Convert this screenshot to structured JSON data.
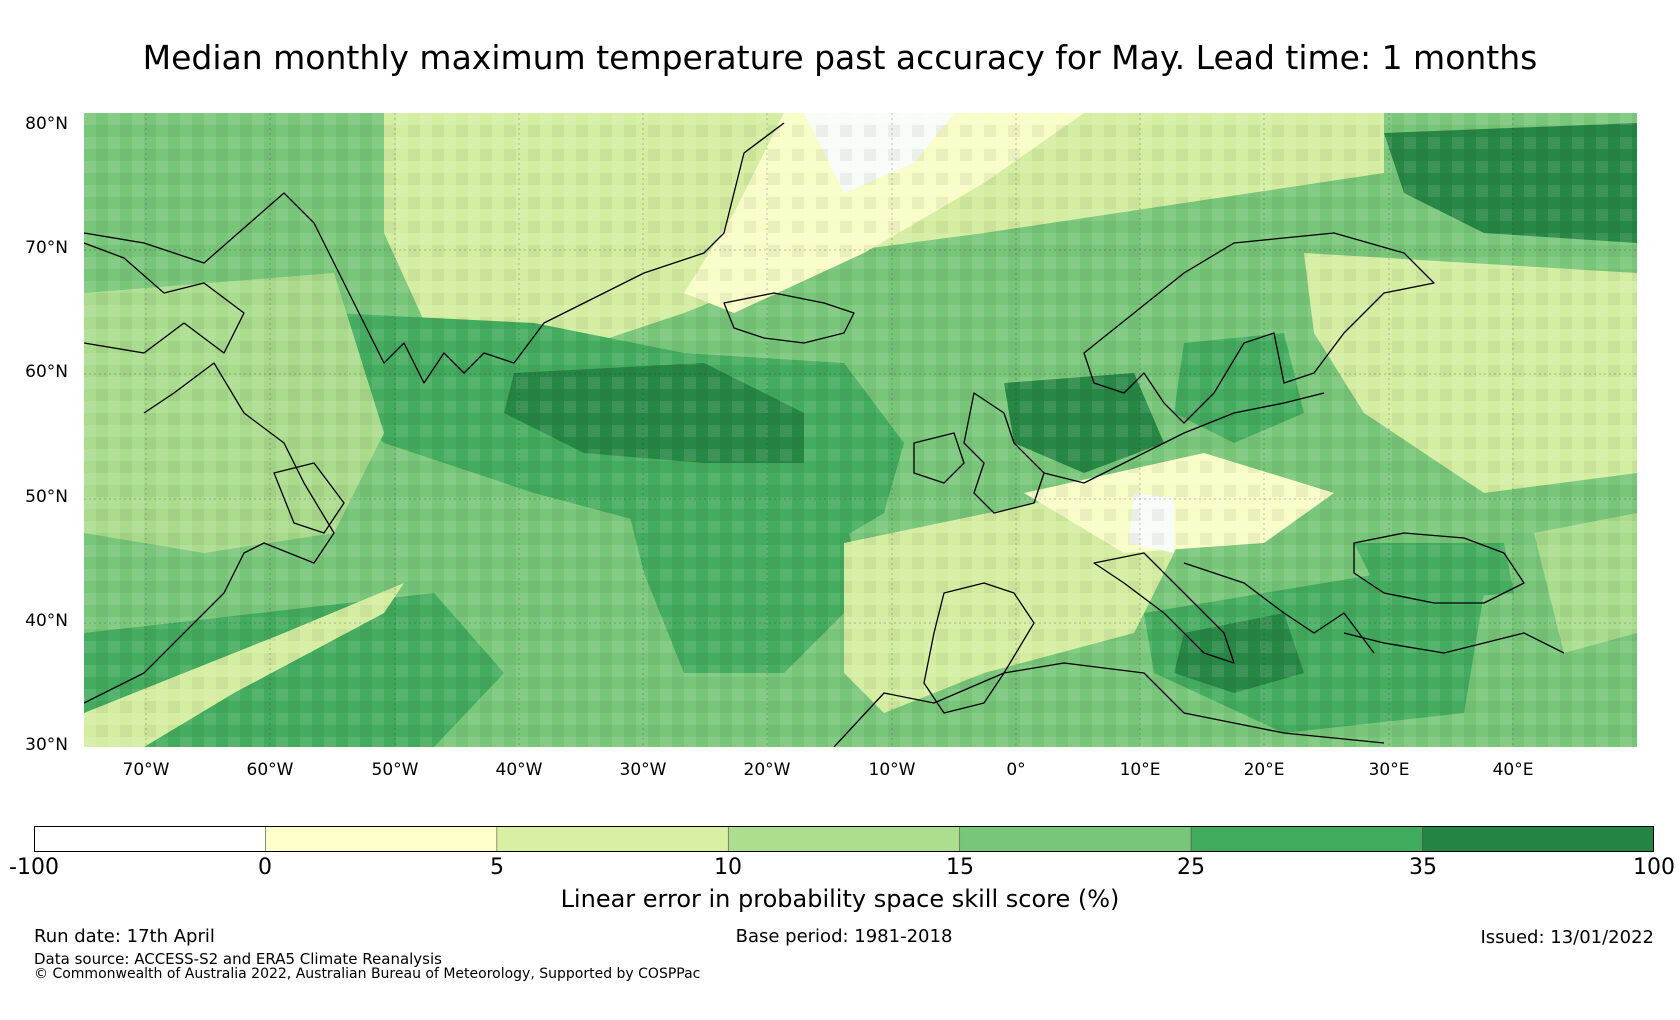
{
  "title": "Median monthly maximum temperature past accuracy for May. Lead time: 1 months",
  "map": {
    "lat_labels": [
      "80°N",
      "70°N",
      "60°N",
      "50°N",
      "40°N",
      "30°N"
    ],
    "lon_labels": [
      "70°W",
      "60°W",
      "50°W",
      "40°W",
      "30°W",
      "20°W",
      "10°W",
      "0°",
      "10°E",
      "20°E",
      "30°E",
      "40°E"
    ],
    "lat_values": [
      80,
      70,
      60,
      50,
      40,
      30
    ],
    "lon_values": [
      -70,
      -60,
      -50,
      -40,
      -30,
      -20,
      -10,
      0,
      10,
      20,
      30,
      40
    ],
    "extent": {
      "lon_min": -75,
      "lon_max": 50,
      "lat_min": 29.7,
      "lat_max": 80.8
    }
  },
  "colorbar": {
    "boundaries": [
      "-100",
      "0",
      "5",
      "10",
      "15",
      "25",
      "35",
      "100"
    ],
    "colors": [
      "#ffffff",
      "#ffffcc",
      "#d9f0a3",
      "#addd8e",
      "#78c679",
      "#41ab5d",
      "#238443"
    ],
    "label": "Linear error in probability space skill score (%)"
  },
  "footer": {
    "run_date": "Run date: 17th April",
    "base_period": "Base period: 1981-2018",
    "issued": "Issued: 13/01/2022",
    "data_source": "Data source: ACCESS-S2 and ERA5 Climate Reanalysis",
    "copyright": "© Commonwealth of Australia 2022, Australian Bureau of Meteorology, Supported by COSPPac"
  }
}
